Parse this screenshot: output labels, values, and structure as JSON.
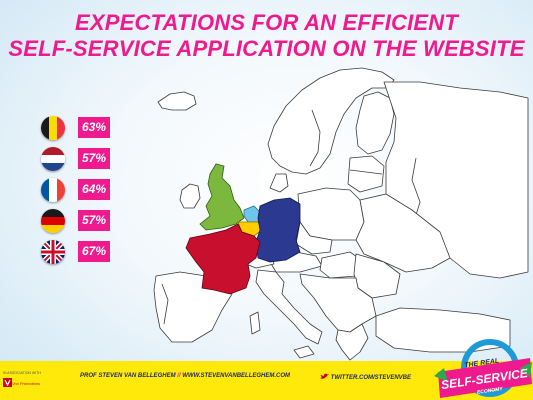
{
  "title": {
    "line1": "EXPECTATIONS FOR AN EFFICIENT",
    "line2": "SELF-SERVICE APPLICATION ON THE WEBSITE"
  },
  "stats": [
    {
      "country": "Belgium",
      "flag": "belgium-flag-icon",
      "value": "63%"
    },
    {
      "country": "Netherlands",
      "flag": "netherlands-flag-icon",
      "value": "57%"
    },
    {
      "country": "France",
      "flag": "france-flag-icon",
      "value": "64%"
    },
    {
      "country": "Germany",
      "flag": "germany-flag-icon",
      "value": "57%"
    },
    {
      "country": "United Kingdom",
      "flag": "uk-flag-icon",
      "value": "67%"
    }
  ],
  "colors": {
    "accent": "#ee1a8e",
    "uk": "#7cb83e",
    "france": "#c8102e",
    "germany": "#2b3990",
    "belgium": "#ffcd00",
    "netherlands": "#6ec6ea",
    "footer": "#ffe90a"
  },
  "footer": {
    "association": "IN ASSOCIATION WITH",
    "partner": "Vox Promotions",
    "author": "PROF STEVEN VAN BELLEGHEM",
    "separator": "//",
    "website": "WWW.STEVENVANBELLEGHEM.COM",
    "twitter": "TWITTER.COM/STEVENVBE"
  },
  "badge": {
    "line1": "THE REAL",
    "line2": "SELF-SERVICE",
    "line3": "ECONOMY"
  }
}
